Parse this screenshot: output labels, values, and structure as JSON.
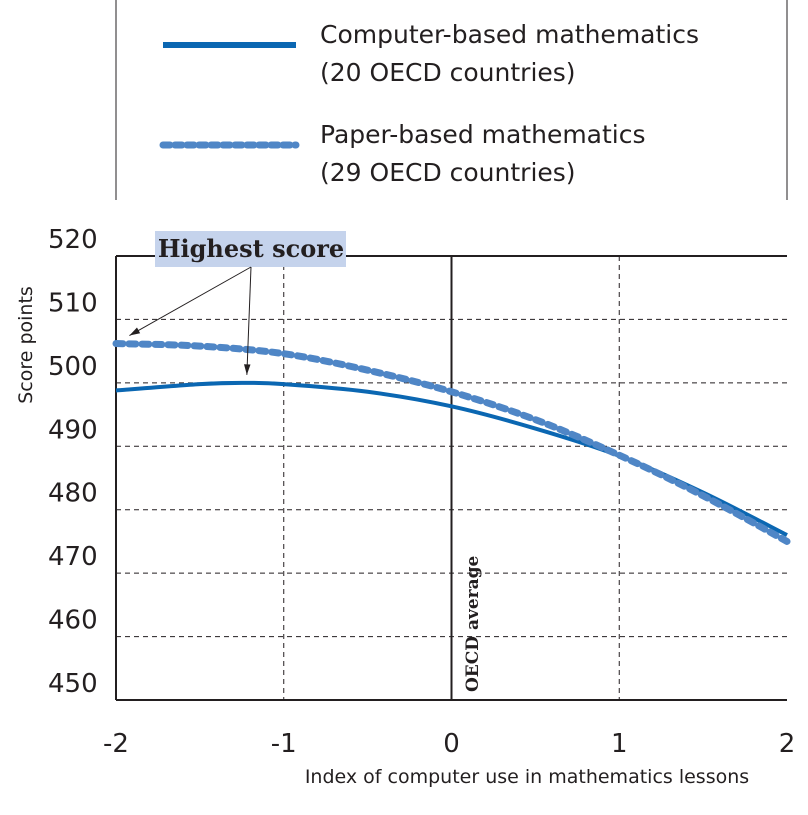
{
  "chart_data": {
    "type": "line",
    "title": "",
    "xlabel": "Index of computer use in mathematics lessons",
    "ylabel": "Score points",
    "xlim": [
      -2,
      2
    ],
    "ylim": [
      450,
      520
    ],
    "x_ticks": [
      "-2",
      "-1",
      "0",
      "1",
      "2"
    ],
    "y_ticks": [
      "520",
      "510",
      "500",
      "490",
      "480",
      "470",
      "460",
      "450"
    ],
    "grid": true,
    "legend_position": "top",
    "series": [
      {
        "name": "Computer-based mathematics",
        "name_line2": "(20 OECD countries)",
        "style": "solid",
        "color": "#0b67b2",
        "x": [
          -2,
          -1.5,
          -1.25,
          -1,
          -0.5,
          0,
          0.5,
          1,
          1.5,
          2
        ],
        "y": [
          498.8,
          499.8,
          500.0,
          499.8,
          498.6,
          496.3,
          492.8,
          488.5,
          482.7,
          476.0
        ]
      },
      {
        "name": "Paper-based mathematics",
        "name_line2": "(29 OECD countries)",
        "style": "dotted",
        "color": "#4f86c6",
        "x": [
          -2,
          -1.5,
          -1,
          -0.5,
          0,
          0.5,
          1,
          1.5,
          2
        ],
        "y": [
          506.2,
          505.8,
          504.6,
          502.0,
          498.6,
          494.2,
          488.6,
          482.2,
          475.0
        ]
      }
    ],
    "annotations": {
      "highest_score": "Highest score",
      "highest_points": [
        {
          "x": -1.92,
          "y": 506.2
        },
        {
          "x": -1.22,
          "y": 500.0
        }
      ],
      "oecd_average": "OECD average",
      "oecd_average_x": 0
    }
  }
}
